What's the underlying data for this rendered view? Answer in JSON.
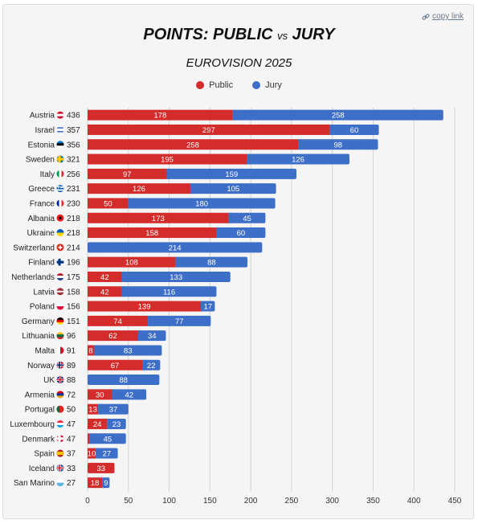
{
  "header": {
    "copy_link": "copy link",
    "title_left": "POINTS: PUBLIC",
    "title_vs": "vs",
    "title_right": "JURY",
    "subtitle": "EUROVISION 2025"
  },
  "colors": {
    "public": "#d42b2b",
    "jury": "#3d6fc8",
    "background": "#f5f5f5",
    "grid": "#d3d3d3"
  },
  "chart_data": {
    "type": "bar",
    "orientation": "horizontal",
    "stacked": true,
    "title": "POINTS: PUBLIC vs JURY",
    "subtitle": "EUROVISION 2025",
    "legend": "top",
    "grid": true,
    "xlim": [
      0,
      450
    ],
    "x_ticks": [
      0,
      50,
      100,
      150,
      200,
      250,
      300,
      350,
      400,
      450
    ],
    "categories": [
      "Austria",
      "Israel",
      "Estonia",
      "Sweden",
      "Italy",
      "Greece",
      "France",
      "Albania",
      "Ukraine",
      "Switzerland",
      "Finland",
      "Netherlands",
      "Latvia",
      "Poland",
      "Germany",
      "Lithuania",
      "Malta",
      "Norway",
      "UK",
      "Armenia",
      "Portugal",
      "Luxembourg",
      "Denmark",
      "Spain",
      "Iceland",
      "San Marino"
    ],
    "totals": [
      436,
      357,
      356,
      321,
      256,
      231,
      230,
      218,
      218,
      214,
      196,
      175,
      158,
      156,
      151,
      96,
      91,
      89,
      88,
      72,
      50,
      47,
      47,
      37,
      33,
      27
    ],
    "flags": [
      "flag-austria-icon",
      "flag-israel-icon",
      "flag-estonia-icon",
      "flag-sweden-icon",
      "flag-italy-icon",
      "flag-greece-icon",
      "flag-france-icon",
      "flag-albania-icon",
      "flag-ukraine-icon",
      "flag-switzerland-icon",
      "flag-finland-icon",
      "flag-netherlands-icon",
      "flag-latvia-icon",
      "flag-poland-icon",
      "flag-germany-icon",
      "flag-lithuania-icon",
      "flag-malta-icon",
      "flag-norway-icon",
      "flag-uk-icon",
      "flag-armenia-icon",
      "flag-portugal-icon",
      "flag-luxembourg-icon",
      "flag-denmark-icon",
      "flag-spain-icon",
      "flag-iceland-icon",
      "flag-san-marino-icon"
    ],
    "series": [
      {
        "name": "Public",
        "values": [
          178,
          297,
          258,
          195,
          97,
          126,
          50,
          173,
          158,
          0,
          108,
          42,
          42,
          139,
          74,
          62,
          8,
          67,
          0,
          30,
          13,
          24,
          2,
          10,
          33,
          18
        ]
      },
      {
        "name": "Jury",
        "values": [
          258,
          60,
          98,
          126,
          159,
          105,
          180,
          45,
          60,
          214,
          88,
          133,
          116,
          17,
          77,
          34,
          83,
          22,
          88,
          42,
          37,
          23,
          45,
          27,
          0,
          9
        ]
      }
    ]
  }
}
